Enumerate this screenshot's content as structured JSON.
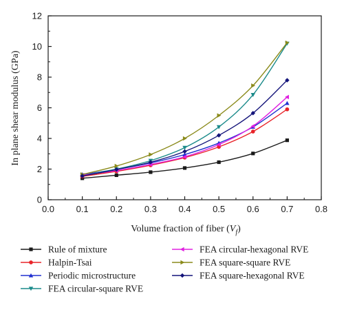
{
  "chart_data": {
    "type": "line",
    "xlabel": "Volume fraction of fiber (",
    "xlabel_symbol": "V",
    "xlabel_sub": "f",
    "xlabel_close": ")",
    "ylabel": "In plane shear modulus (GPa)",
    "xlim": [
      0.0,
      0.8
    ],
    "ylim": [
      0,
      12
    ],
    "xticks": [
      "0.0",
      "0.1",
      "0.2",
      "0.3",
      "0.4",
      "0.5",
      "0.6",
      "0.7",
      "0.8"
    ],
    "yticks": [
      "0",
      "2",
      "4",
      "6",
      "8",
      "10",
      "12"
    ],
    "x": [
      0.1,
      0.2,
      0.3,
      0.4,
      0.5,
      0.6,
      0.7
    ],
    "grid": false,
    "legend_position": "bottom",
    "series": [
      {
        "name": "Rule of mixture",
        "color": "#1a1a1a",
        "marker": "square",
        "values": [
          1.4,
          1.6,
          1.8,
          2.07,
          2.45,
          3.02,
          3.88
        ]
      },
      {
        "name": "Halpin-Tsai",
        "color": "#e8242a",
        "marker": "circle",
        "values": [
          1.52,
          1.85,
          2.25,
          2.75,
          3.45,
          4.45,
          5.9
        ]
      },
      {
        "name": "Periodic microstructure",
        "color": "#2030d0",
        "marker": "triangle-up",
        "values": [
          1.65,
          1.98,
          2.4,
          2.95,
          3.7,
          4.75,
          6.3
        ]
      },
      {
        "name": "FEA circular-square RVE",
        "color": "#1a8a8a",
        "marker": "triangle-down",
        "values": [
          1.6,
          2.0,
          2.55,
          3.4,
          4.75,
          6.85,
          10.2
        ]
      },
      {
        "name": "FEA circular-hexagonal RVE",
        "color": "#e020e0",
        "marker": "triangle-left",
        "values": [
          1.6,
          1.9,
          2.3,
          2.8,
          3.6,
          4.8,
          6.7
        ]
      },
      {
        "name": "FEA square-square RVE",
        "color": "#8a8a1a",
        "marker": "triangle-right",
        "values": [
          1.65,
          2.2,
          2.95,
          4.0,
          5.5,
          7.45,
          10.25
        ]
      },
      {
        "name": "FEA square-hexagonal RVE",
        "color": "#14147a",
        "marker": "diamond",
        "values": [
          1.55,
          1.97,
          2.45,
          3.15,
          4.2,
          5.65,
          7.8
        ]
      }
    ]
  }
}
